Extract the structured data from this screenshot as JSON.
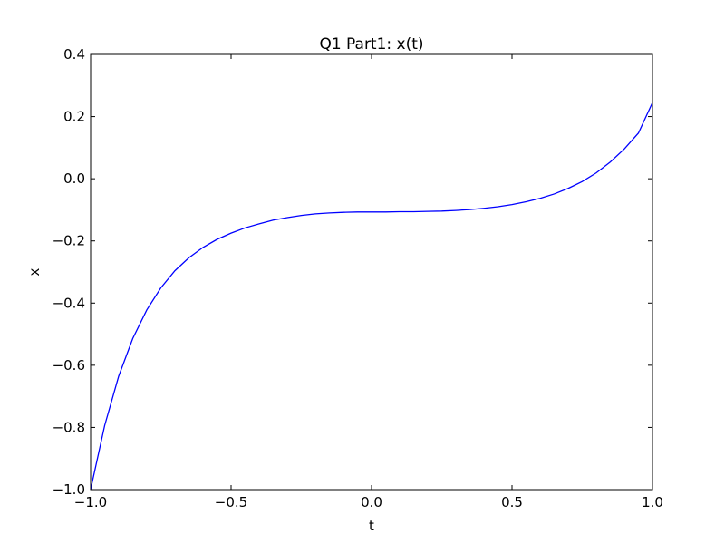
{
  "chart_data": {
    "type": "line",
    "title": "Q1 Part1: x(t)",
    "xlabel": "t",
    "ylabel": "x",
    "xlim": [
      -1.0,
      1.0
    ],
    "ylim": [
      -1.0,
      0.4
    ],
    "grid": false,
    "xticks": [
      -1.0,
      -0.5,
      0.0,
      0.5,
      1.0
    ],
    "xtick_labels": [
      "−1.0",
      "−0.5",
      "0.0",
      "0.5",
      "1.0"
    ],
    "yticks": [
      -1.0,
      -0.8,
      -0.6,
      -0.4,
      -0.2,
      0.0,
      0.2,
      0.4
    ],
    "ytick_labels": [
      "−1.0",
      "−0.8",
      "−0.6",
      "−0.4",
      "−0.2",
      "0.0",
      "0.2",
      "0.4"
    ],
    "series": [
      {
        "color": "#0000ff",
        "x": [
          -1.0,
          -0.95,
          -0.9,
          -0.85,
          -0.8,
          -0.75,
          -0.7,
          -0.65,
          -0.6,
          -0.55,
          -0.5,
          -0.45,
          -0.4,
          -0.35,
          -0.3,
          -0.25,
          -0.2,
          -0.15,
          -0.1,
          -0.05,
          0.0,
          0.05,
          0.1,
          0.15,
          0.2,
          0.25,
          0.3,
          0.35,
          0.4,
          0.45,
          0.5,
          0.55,
          0.6,
          0.65,
          0.7,
          0.75,
          0.8,
          0.85,
          0.9,
          0.95,
          1.0
        ],
        "y": [
          -1.0,
          -0.794,
          -0.635,
          -0.514,
          -0.422,
          -0.351,
          -0.296,
          -0.254,
          -0.221,
          -0.195,
          -0.175,
          -0.158,
          -0.145,
          -0.133,
          -0.125,
          -0.118,
          -0.113,
          -0.11,
          -0.108,
          -0.107,
          -0.107,
          -0.107,
          -0.106,
          -0.106,
          -0.105,
          -0.104,
          -0.102,
          -0.099,
          -0.095,
          -0.09,
          -0.083,
          -0.074,
          -0.063,
          -0.049,
          -0.031,
          -0.009,
          0.019,
          0.054,
          0.096,
          0.147,
          0.245
        ]
      }
    ]
  }
}
